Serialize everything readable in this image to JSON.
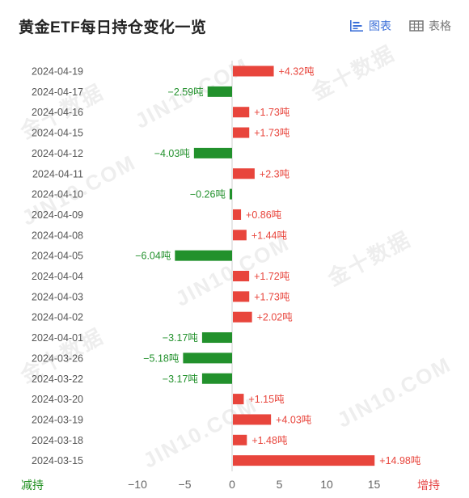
{
  "header": {
    "title": "黄金ETF每日持仓变化一览",
    "tabs": [
      {
        "label": "图表",
        "icon": "bar-chart-icon",
        "active": true
      },
      {
        "label": "表格",
        "icon": "table-icon",
        "active": false
      }
    ]
  },
  "legend": {
    "left": "减持",
    "right": "增持"
  },
  "colors": {
    "positive": "#e8453c",
    "negative": "#22912c",
    "accent": "#3b6fd8"
  },
  "watermark": [
    "金十数据",
    "JIN10.COM"
  ],
  "chart_data": {
    "type": "bar",
    "orientation": "horizontal",
    "categories": [
      "2024-04-19",
      "2024-04-17",
      "2024-04-16",
      "2024-04-15",
      "2024-04-12",
      "2024-04-11",
      "2024-04-10",
      "2024-04-09",
      "2024-04-08",
      "2024-04-05",
      "2024-04-04",
      "2024-04-03",
      "2024-04-02",
      "2024-04-01",
      "2024-03-26",
      "2024-03-22",
      "2024-03-20",
      "2024-03-19",
      "2024-03-18",
      "2024-03-15"
    ],
    "values": [
      4.32,
      -2.59,
      1.73,
      1.73,
      -4.03,
      2.3,
      -0.26,
      0.86,
      1.44,
      -6.04,
      1.72,
      1.73,
      2.02,
      -3.17,
      -5.18,
      -3.17,
      1.15,
      4.03,
      1.48,
      14.98
    ],
    "labels": [
      "+4.32吨",
      "−2.59吨",
      "+1.73吨",
      "+1.73吨",
      "−4.03吨",
      "+2.3吨",
      "−0.26吨",
      "+0.86吨",
      "+1.44吨",
      "−6.04吨",
      "+1.72吨",
      "+1.73吨",
      "+2.02吨",
      "−3.17吨",
      "−5.18吨",
      "−3.17吨",
      "+1.15吨",
      "+4.03吨",
      "+1.48吨",
      "+14.98吨"
    ],
    "xlim": [
      -15,
      20
    ],
    "xticks": [
      -10,
      -5,
      0,
      5,
      10,
      15
    ],
    "xtick_labels": [
      "−10",
      "−5",
      "0",
      "5",
      "10",
      "15"
    ],
    "grid": false
  }
}
